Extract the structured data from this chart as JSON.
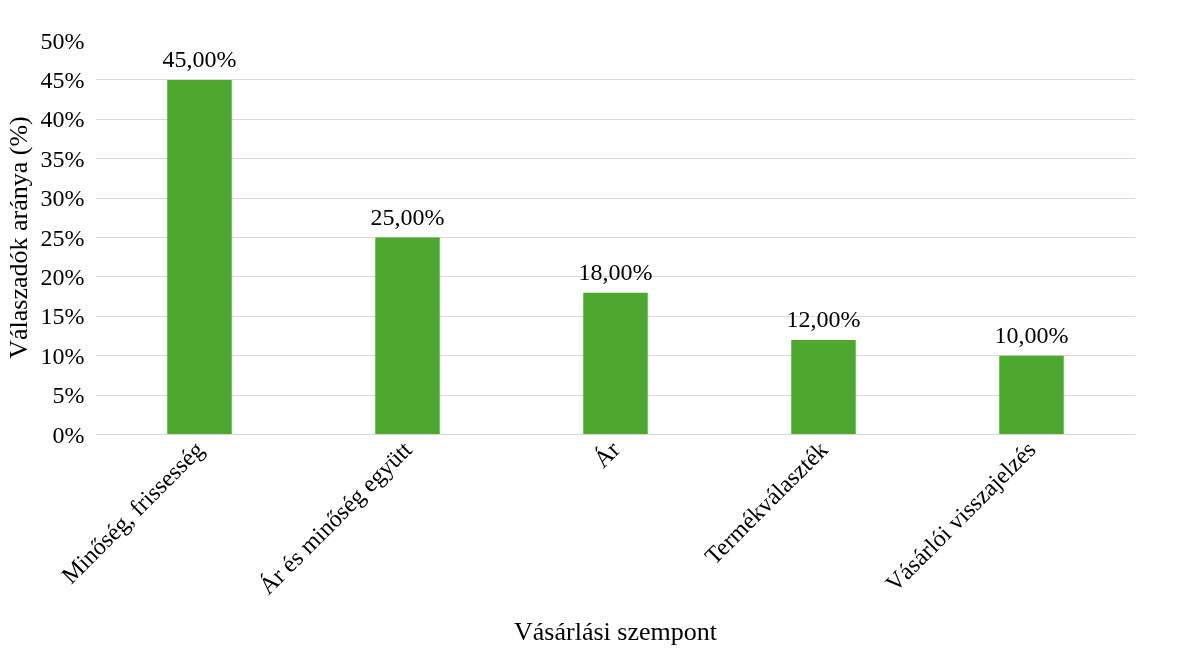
{
  "chart_data": {
    "type": "bar",
    "xlabel": "Vásárlási szempont",
    "ylabel": "Válaszadók aránya (%)",
    "categories": [
      "Minőség, frissesség",
      "Ár és minőség együtt",
      "Ár",
      "Termékválaszték",
      "Vásárlói visszajelzés"
    ],
    "values": [
      45,
      25,
      18,
      12,
      10
    ],
    "value_labels": [
      "45,00%",
      "25,00%",
      "18,00%",
      "12,00%",
      "10,00%"
    ],
    "color": "#4ea72e",
    "ylim": [
      0,
      50
    ],
    "yticks": [
      {
        "value": 0,
        "label": "0%"
      },
      {
        "value": 5,
        "label": "5%"
      },
      {
        "value": 10,
        "label": "10%"
      },
      {
        "value": 15,
        "label": "15%"
      },
      {
        "value": 20,
        "label": "20%"
      },
      {
        "value": 25,
        "label": "25%"
      },
      {
        "value": 30,
        "label": "30%"
      },
      {
        "value": 35,
        "label": "35%"
      },
      {
        "value": 40,
        "label": "40%"
      },
      {
        "value": 45,
        "label": "45%"
      },
      {
        "value": 50,
        "label": "50%"
      }
    ],
    "grid": "y"
  }
}
